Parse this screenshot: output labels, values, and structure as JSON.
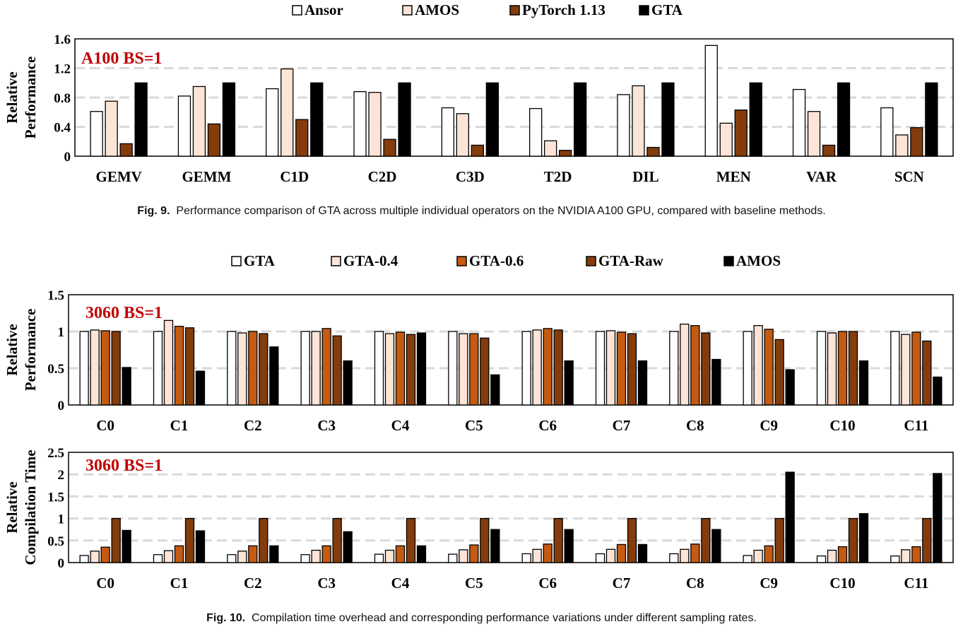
{
  "colors": {
    "white": "#ffffff",
    "peach": "#fce4d6",
    "orange": "#c55a11",
    "brown": "#843c0c",
    "black": "#000000",
    "grid": "#d9d9d9",
    "label_red": "#c00000"
  },
  "fig9": {
    "caption_prefix": "Fig. 9.",
    "caption_text": "Performance comparison of GTA across multiple individual operators on the NVIDIA A100 GPU, compared with baseline methods.",
    "legend": [
      "Ansor",
      "AMOS",
      "PyTorch 1.13",
      "GTA"
    ]
  },
  "fig10": {
    "caption_prefix": "Fig. 10.",
    "caption_text": "Compilation time overhead and corresponding performance variations under different sampling rates.",
    "legend": [
      "GTA",
      "GTA-0.4",
      "GTA-0.6",
      "GTA-Raw",
      "AMOS"
    ]
  },
  "chart_data": [
    {
      "type": "bar",
      "panel_label": "A100 BS=1",
      "ylabel": [
        "Relative",
        "Performance"
      ],
      "ylim": [
        0,
        1.6
      ],
      "yticks": [
        "0",
        "0.4",
        "0.8",
        "1.2",
        "1.6"
      ],
      "grid": true,
      "categories": [
        "GEMV",
        "GEMM",
        "C1D",
        "C2D",
        "C3D",
        "T2D",
        "DIL",
        "MEN",
        "VAR",
        "SCN"
      ],
      "series": [
        {
          "name": "Ansor",
          "color": "#ffffff",
          "values": [
            0.61,
            0.82,
            0.92,
            0.88,
            0.66,
            0.65,
            0.84,
            1.51,
            0.91,
            0.66
          ]
        },
        {
          "name": "AMOS",
          "color": "#fce4d6",
          "values": [
            0.75,
            0.95,
            1.19,
            0.87,
            0.58,
            0.21,
            0.96,
            0.45,
            0.61,
            0.29
          ]
        },
        {
          "name": "PyTorch 1.13",
          "color": "#843c0c",
          "values": [
            0.17,
            0.44,
            0.5,
            0.23,
            0.15,
            0.08,
            0.12,
            0.63,
            0.15,
            0.39
          ]
        },
        {
          "name": "GTA",
          "color": "#000000",
          "values": [
            1.0,
            1.0,
            1.0,
            1.0,
            1.0,
            1.0,
            1.0,
            1.0,
            1.0,
            1.0
          ]
        }
      ]
    },
    {
      "type": "bar",
      "panel_label": "3060 BS=1",
      "ylabel": [
        "Relative",
        "Performance"
      ],
      "ylim": [
        0,
        1.5
      ],
      "yticks": [
        "0",
        "0.5",
        "1",
        "1.5"
      ],
      "grid": true,
      "categories": [
        "C0",
        "C1",
        "C2",
        "C3",
        "C4",
        "C5",
        "C6",
        "C7",
        "C8",
        "C9",
        "C10",
        "C11"
      ],
      "series": [
        {
          "name": "GTA",
          "color": "#ffffff",
          "values": [
            1.0,
            1.0,
            1.0,
            1.0,
            1.0,
            1.0,
            1.0,
            1.0,
            1.0,
            1.0,
            1.0,
            1.0
          ]
        },
        {
          "name": "GTA-0.4",
          "color": "#fce4d6",
          "values": [
            1.02,
            1.15,
            0.98,
            1.0,
            0.97,
            0.97,
            1.02,
            1.01,
            1.1,
            1.08,
            0.98,
            0.96
          ]
        },
        {
          "name": "GTA-0.6",
          "color": "#c55a11",
          "values": [
            1.01,
            1.07,
            1.0,
            1.04,
            0.99,
            0.97,
            1.04,
            0.99,
            1.08,
            1.03,
            1.0,
            0.99
          ]
        },
        {
          "name": "GTA-Raw",
          "color": "#843c0c",
          "values": [
            1.0,
            1.05,
            0.97,
            0.94,
            0.96,
            0.91,
            1.02,
            0.97,
            0.98,
            0.89,
            1.0,
            0.87
          ]
        },
        {
          "name": "AMOS",
          "color": "#000000",
          "values": [
            0.51,
            0.46,
            0.79,
            0.6,
            0.98,
            0.41,
            0.6,
            0.6,
            0.62,
            0.48,
            0.6,
            0.38
          ]
        }
      ]
    },
    {
      "type": "bar",
      "panel_label": "3060 BS=1",
      "ylabel": [
        "Relative",
        "Compilation Time"
      ],
      "ylim": [
        0,
        2.5
      ],
      "yticks": [
        "0",
        "0.5",
        "1",
        "1.5",
        "2",
        "2.5"
      ],
      "grid": true,
      "categories": [
        "C0",
        "C1",
        "C2",
        "C3",
        "C4",
        "C5",
        "C6",
        "C7",
        "C8",
        "C9",
        "C10",
        "C11"
      ],
      "series": [
        {
          "name": "GTA",
          "color": "#ffffff",
          "values": [
            0.16,
            0.18,
            0.18,
            0.18,
            0.19,
            0.19,
            0.2,
            0.2,
            0.2,
            0.16,
            0.15,
            0.15
          ]
        },
        {
          "name": "GTA-0.4",
          "color": "#fce4d6",
          "values": [
            0.26,
            0.27,
            0.26,
            0.28,
            0.28,
            0.29,
            0.3,
            0.3,
            0.3,
            0.28,
            0.28,
            0.29
          ]
        },
        {
          "name": "GTA-0.6",
          "color": "#c55a11",
          "values": [
            0.35,
            0.38,
            0.38,
            0.38,
            0.38,
            0.4,
            0.42,
            0.41,
            0.42,
            0.38,
            0.36,
            0.36
          ]
        },
        {
          "name": "GTA-Raw",
          "color": "#843c0c",
          "values": [
            1.0,
            1.0,
            1.0,
            1.0,
            1.0,
            1.0,
            1.0,
            1.0,
            1.0,
            1.0,
            1.0,
            1.0
          ]
        },
        {
          "name": "AMOS",
          "color": "#000000",
          "values": [
            0.73,
            0.72,
            0.38,
            0.7,
            0.38,
            0.75,
            0.75,
            0.41,
            0.75,
            2.05,
            1.11,
            2.02
          ]
        }
      ]
    }
  ]
}
